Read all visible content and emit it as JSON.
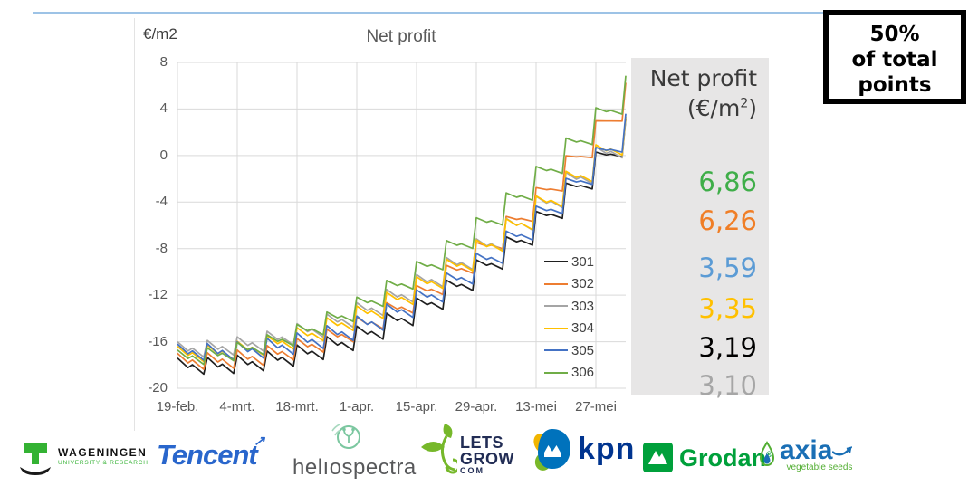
{
  "slide": {
    "top_rule_color": "#9DC3E6",
    "badge": {
      "lines": [
        "50%",
        "of total",
        "points"
      ]
    }
  },
  "chart_data": {
    "type": "line",
    "title": "Net profit",
    "y_axis_unit_label": "€/m2",
    "x_tick_labels": [
      "19-feb.",
      "4-mrt.",
      "18-mrt.",
      "1-apr.",
      "15-apr.",
      "29-apr.",
      "13-mei",
      "27-mei"
    ],
    "y_ticks": [
      8,
      4,
      0,
      -4,
      -8,
      -12,
      -16,
      -20
    ],
    "ylim": [
      -20,
      8
    ],
    "x_total_weeks": 15,
    "grid": true,
    "legend_position": "inside-right",
    "pattern_note": "weekly sawtooth: gradual in-week decline then sharp weekly jump, jumps grow over season",
    "sawtooth": {
      "jump_base": 1.3,
      "jump_growth": 2.0
    },
    "gridline_color": "#D9D9D9",
    "series": [
      {
        "name": "301",
        "color": "#1F1F1F",
        "start": -17.4,
        "end": 3.19,
        "weekly_peaks": [
          -17.35,
          -17.16,
          -16.8,
          -16.28,
          -15.57,
          -14.66,
          -13.55,
          -12.24,
          -10.71,
          -8.96,
          -6.99,
          -4.8,
          -2.37,
          0.29,
          3.19
        ]
      },
      {
        "name": "302",
        "color": "#ED7D31",
        "start": -17.0,
        "end": 6.26,
        "weekly_peaks": [
          -16.94,
          -16.72,
          -16.33,
          -15.73,
          -14.93,
          -13.9,
          -12.65,
          -11.17,
          -9.44,
          -7.47,
          -5.24,
          -2.76,
          -0.02,
          2.98,
          6.26
        ]
      },
      {
        "name": "303",
        "color": "#A5A5A5",
        "start": -16.0,
        "end": 3.1,
        "weekly_peaks": [
          -15.89,
          -15.58,
          -15.1,
          -14.45,
          -13.63,
          -12.65,
          -11.51,
          -10.22,
          -8.77,
          -7.16,
          -5.4,
          -3.5,
          -1.45,
          0.75,
          3.1
        ]
      },
      {
        "name": "304",
        "color": "#FFC000",
        "start": -16.4,
        "end": 3.35,
        "weekly_peaks": [
          -16.28,
          -15.97,
          -15.47,
          -14.8,
          -13.95,
          -12.93,
          -11.76,
          -10.42,
          -8.92,
          -7.26,
          -5.44,
          -3.47,
          -1.35,
          0.92,
          3.35
        ]
      },
      {
        "name": "305",
        "color": "#4472C4",
        "start": -16.2,
        "end": 3.59,
        "weekly_peaks": [
          -16.16,
          -16.01,
          -15.71,
          -15.25,
          -14.62,
          -13.79,
          -12.77,
          -11.54,
          -10.09,
          -8.41,
          -6.5,
          -4.35,
          -1.96,
          0.68,
          3.59
        ]
      },
      {
        "name": "306",
        "color": "#70AD47",
        "start": -16.7,
        "end": 6.86,
        "weekly_peaks": [
          -16.52,
          -16.07,
          -15.4,
          -14.52,
          -13.44,
          -12.17,
          -10.73,
          -9.1,
          -7.31,
          -5.35,
          -3.21,
          -0.94,
          1.5,
          4.11,
          6.86
        ]
      }
    ]
  },
  "side_panel": {
    "bg": "#E7E6E6",
    "header_line1": "Net profit",
    "header_line2_prefix": "(€/m",
    "header_sup": "2",
    "header_line2_suffix": ")",
    "values": [
      {
        "text": "6,86",
        "color": "#3FAE49"
      },
      {
        "text": "6,26",
        "color": "#F07E26"
      },
      {
        "text": "3,59",
        "color": "#5B9BD5"
      },
      {
        "text": "3,35",
        "color": "#FFC000"
      },
      {
        "text": "3,19",
        "color": "#000000"
      },
      {
        "text": "3,10",
        "color": "#A6A6A6"
      }
    ]
  },
  "logos": {
    "wageningen": {
      "line1": "WAGENINGEN",
      "line2": "UNIVERSITY & RESEARCH",
      "green": "#34B233",
      "black": "#1A1A1A"
    },
    "tencent": {
      "text": "Tencent",
      "arrow": "↗",
      "color": "#2966CC"
    },
    "heliospectra": {
      "text": "helıospectra",
      "text_color": "#58595B",
      "icon_green": "#7CC7A0"
    },
    "letsgrow": {
      "line1": "LETS",
      "line2": "GROW",
      "line3": "COM",
      "navy": "#222D55",
      "green": "#76B82A"
    },
    "kpn": {
      "text": "kpn",
      "color": "#00348F",
      "icon_blue": "#0072BC",
      "icon_green": "#7AB829",
      "icon_yellow": "#F1B500"
    },
    "grodan": {
      "text": "Grodan",
      "reg": "®",
      "color": "#00A03B"
    },
    "axia": {
      "text": "axia",
      "sub": "vegetable seeds",
      "blue": "#1A6FB5",
      "green": "#52AE32"
    }
  }
}
